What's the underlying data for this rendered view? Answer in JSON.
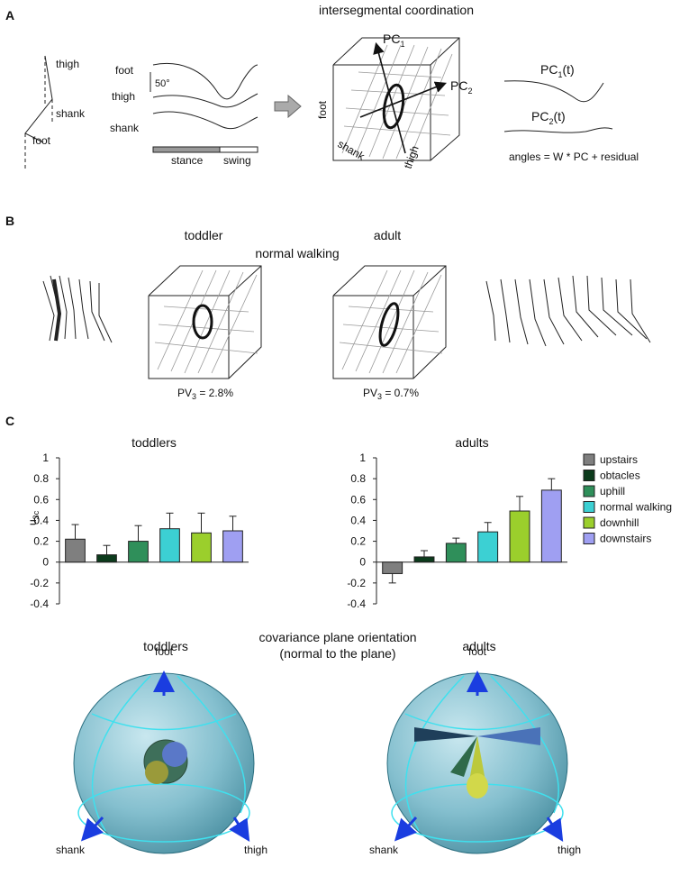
{
  "panel_a": {
    "label": "A",
    "title": "intersegmental coordination",
    "stick_labels": [
      "thigh",
      "shank",
      "foot"
    ],
    "trace_labels": [
      "foot",
      "thigh",
      "shank"
    ],
    "scale": "50°",
    "phases": [
      "stance",
      "swing"
    ],
    "axes": [
      "foot",
      "shank",
      "thigh"
    ],
    "pc1": {
      "base": "PC",
      "sub": "1"
    },
    "pc2": {
      "base": "PC",
      "sub": "2"
    },
    "pc1t": {
      "base": "PC",
      "sub": "1",
      "suffix": "(t)"
    },
    "pc2t": {
      "base": "PC",
      "sub": "2",
      "suffix": "(t)"
    },
    "equation": "angles = W * PC + residual"
  },
  "panel_b": {
    "label": "B",
    "toddler": "toddler",
    "adult": "adult",
    "condition": "normal walking",
    "pv_toddler": {
      "base": "PV",
      "sub": "3",
      "suffix": " = 2.8%"
    },
    "pv_adult": {
      "base": "PV",
      "sub": "3",
      "suffix": " = 0.7%"
    }
  },
  "panel_c": {
    "label": "C",
    "ylabel": {
      "base": "u",
      "sub": "3c"
    },
    "legend": [
      "upstairs",
      "obtacles",
      "uphill",
      "normal walking",
      "downhill",
      "downstairs"
    ],
    "sphere_title": [
      "covariance plane orientation",
      "(normal to the plane)"
    ],
    "sphere_titles": [
      "toddlers",
      "adults"
    ],
    "sphere_axes": [
      "foot",
      "shank",
      "thigh"
    ]
  },
  "chart_data": [
    {
      "type": "bar",
      "title": "toddlers",
      "values": [
        0.22,
        0.07,
        0.2,
        0.32,
        0.28,
        0.3
      ],
      "errors": [
        0.14,
        0.09,
        0.15,
        0.15,
        0.19,
        0.14
      ],
      "colors": [
        "#7f7f7f",
        "#0c3b1c",
        "#2f8f5a",
        "#3cd0d3",
        "#9bcf2c",
        "#9f9ff2"
      ],
      "ylim": [
        -0.4,
        1
      ],
      "yticks": [
        1,
        0.8,
        0.6,
        0.4,
        0.2,
        0,
        -0.2,
        -0.4
      ]
    },
    {
      "type": "bar",
      "title": "adults",
      "values": [
        -0.11,
        0.05,
        0.18,
        0.29,
        0.49,
        0.69
      ],
      "errors": [
        0.09,
        0.06,
        0.05,
        0.09,
        0.14,
        0.11
      ],
      "colors": [
        "#7f7f7f",
        "#0c3b1c",
        "#2f8f5a",
        "#3cd0d3",
        "#9bcf2c",
        "#9f9ff2"
      ],
      "ylim": [
        -0.4,
        1
      ],
      "yticks": [
        1,
        0.8,
        0.6,
        0.4,
        0.2,
        0,
        -0.2,
        -0.4
      ]
    }
  ]
}
